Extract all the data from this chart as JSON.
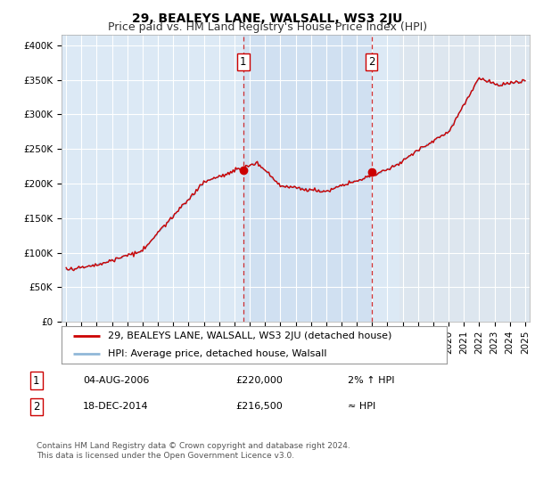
{
  "title": "29, BEALEYS LANE, WALSALL, WS3 2JU",
  "subtitle": "Price paid vs. HM Land Registry's House Price Index (HPI)",
  "ylabel_ticks": [
    "£0",
    "£50K",
    "£100K",
    "£150K",
    "£200K",
    "£250K",
    "£300K",
    "£350K",
    "£400K"
  ],
  "ytick_values": [
    0,
    50000,
    100000,
    150000,
    200000,
    250000,
    300000,
    350000,
    400000
  ],
  "ylim": [
    0,
    415000
  ],
  "xlim_start": 1994.7,
  "xlim_end": 2025.3,
  "background_color": "#ffffff",
  "plot_bg_color": "#dce9f5",
  "plot_bg_color_right": "#e8e8e8",
  "shade_color": "#c5d9ef",
  "grid_color": "#ffffff",
  "hpi_line_color": "#90b8d8",
  "price_line_color": "#cc0000",
  "sale1_x": 2006.58,
  "sale1_y": 220000,
  "sale2_x": 2014.96,
  "sale2_y": 216500,
  "marker_color": "#cc0000",
  "legend_line1": "29, BEALEYS LANE, WALSALL, WS3 2JU (detached house)",
  "legend_line2": "HPI: Average price, detached house, Walsall",
  "table_row1_num": "1",
  "table_row1_date": "04-AUG-2006",
  "table_row1_price": "£220,000",
  "table_row1_hpi": "2% ↑ HPI",
  "table_row2_num": "2",
  "table_row2_date": "18-DEC-2014",
  "table_row2_price": "£216,500",
  "table_row2_hpi": "≈ HPI",
  "footer": "Contains HM Land Registry data © Crown copyright and database right 2024.\nThis data is licensed under the Open Government Licence v3.0.",
  "title_fontsize": 10,
  "subtitle_fontsize": 9,
  "tick_fontsize": 7.5,
  "legend_fontsize": 8,
  "table_fontsize": 8,
  "footer_fontsize": 6.5
}
